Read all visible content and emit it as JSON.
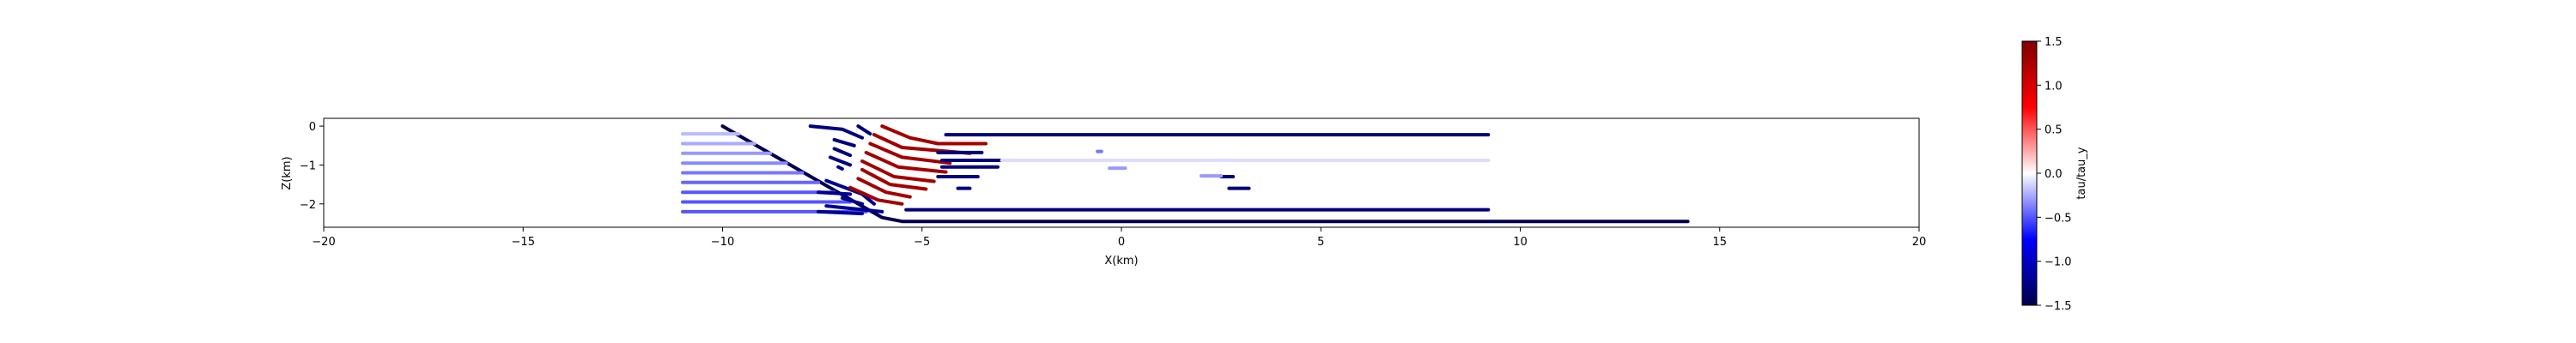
{
  "chart_data": {
    "type": "scatter",
    "xlabel": "X(km)",
    "ylabel": "Z(km)",
    "xlim": [
      -20,
      20
    ],
    "ylim": [
      -2.6,
      0.2
    ],
    "xticks": [
      "−20",
      "−15",
      "−10",
      "−5",
      "0",
      "5",
      "10",
      "15",
      "20"
    ],
    "xtick_values": [
      -20,
      -15,
      -10,
      -5,
      0,
      5,
      10,
      15,
      20
    ],
    "yticks": [
      "0",
      "−1",
      "−2"
    ],
    "ytick_values": [
      0,
      -1,
      -2
    ],
    "grid": false,
    "colorbar": {
      "label": "tau/tau_y",
      "range": [
        -1.5,
        1.5
      ],
      "ticks": [
        "1.5",
        "1.0",
        "0.5",
        "0.0",
        "−0.5",
        "−1.0",
        "−1.5"
      ],
      "tick_values": [
        1.5,
        1.0,
        0.5,
        0.0,
        -0.5,
        -1.0,
        -1.5
      ],
      "colormap": "seismic",
      "colors": [
        "#00004c",
        "#0000ff",
        "#ffffff",
        "#ff0000",
        "#800000"
      ]
    },
    "series": [
      {
        "kind": "curve",
        "value": -1.5,
        "points": [
          [
            -10.0,
            0.0
          ],
          [
            -6.0,
            -2.35
          ],
          [
            -5.5,
            -2.45
          ],
          [
            -4.0,
            -2.45
          ],
          [
            14.2,
            -2.45
          ]
        ]
      },
      {
        "kind": "curve",
        "value": -0.2,
        "points": [
          [
            -11.0,
            -0.2
          ],
          [
            -9.6,
            -0.2
          ]
        ]
      },
      {
        "kind": "curve",
        "value": -0.25,
        "points": [
          [
            -11.0,
            -0.45
          ],
          [
            -9.2,
            -0.45
          ]
        ]
      },
      {
        "kind": "curve",
        "value": -0.3,
        "points": [
          [
            -11.0,
            -0.7
          ],
          [
            -8.8,
            -0.7
          ]
        ]
      },
      {
        "kind": "curve",
        "value": -0.35,
        "points": [
          [
            -11.0,
            -0.95
          ],
          [
            -8.4,
            -0.95
          ]
        ]
      },
      {
        "kind": "curve",
        "value": -0.4,
        "points": [
          [
            -11.0,
            -1.2
          ],
          [
            -8.0,
            -1.2
          ]
        ]
      },
      {
        "kind": "curve",
        "value": -0.45,
        "points": [
          [
            -11.0,
            -1.45
          ],
          [
            -7.6,
            -1.45
          ]
        ]
      },
      {
        "kind": "curve",
        "value": -0.5,
        "points": [
          [
            -11.0,
            -1.7
          ],
          [
            -7.2,
            -1.7
          ]
        ]
      },
      {
        "kind": "curve",
        "value": -0.5,
        "points": [
          [
            -11.0,
            -1.95
          ],
          [
            -6.8,
            -1.95
          ]
        ]
      },
      {
        "kind": "curve",
        "value": -0.5,
        "points": [
          [
            -11.0,
            -2.2
          ],
          [
            -6.4,
            -2.2
          ]
        ]
      },
      {
        "kind": "curve",
        "value": -1.2,
        "points": [
          [
            -7.4,
            -1.4
          ],
          [
            -6.5,
            -1.75
          ],
          [
            -6.2,
            -2.0
          ]
        ]
      },
      {
        "kind": "curve",
        "value": -1.2,
        "points": [
          [
            -7.6,
            -1.7
          ],
          [
            -6.8,
            -1.75
          ]
        ]
      },
      {
        "kind": "curve",
        "value": -1.2,
        "points": [
          [
            -7.0,
            -1.85
          ],
          [
            -6.5,
            -2.0
          ]
        ]
      },
      {
        "kind": "curve",
        "value": -1.2,
        "points": [
          [
            -7.4,
            -2.05
          ],
          [
            -6.0,
            -2.2
          ]
        ]
      },
      {
        "kind": "curve",
        "value": -1.2,
        "points": [
          [
            -7.6,
            -2.2
          ],
          [
            -6.5,
            -2.25
          ]
        ]
      },
      {
        "kind": "curve",
        "value": -1.3,
        "points": [
          [
            -7.8,
            0.0
          ],
          [
            -7.0,
            -0.08
          ],
          [
            -6.5,
            -0.3
          ]
        ]
      },
      {
        "kind": "curve",
        "value": -1.3,
        "points": [
          [
            -6.6,
            0.0
          ],
          [
            -6.3,
            -0.2
          ]
        ]
      },
      {
        "kind": "curve",
        "value": -1.3,
        "points": [
          [
            -7.2,
            -0.35
          ],
          [
            -6.7,
            -0.5
          ]
        ]
      },
      {
        "kind": "curve",
        "value": -1.3,
        "points": [
          [
            -7.2,
            -0.58
          ],
          [
            -6.8,
            -0.75
          ]
        ]
      },
      {
        "kind": "curve",
        "value": -1.3,
        "points": [
          [
            -7.3,
            -0.8
          ],
          [
            -6.8,
            -1.0
          ]
        ]
      },
      {
        "kind": "curve",
        "value": -1.2,
        "points": [
          [
            -7.1,
            -1.05
          ],
          [
            -7.0,
            -1.1
          ]
        ]
      },
      {
        "kind": "curve",
        "value": 1.3,
        "points": [
          [
            -6.0,
            0.0
          ],
          [
            -5.3,
            -0.3
          ],
          [
            -4.6,
            -0.45
          ],
          [
            -3.4,
            -0.45
          ]
        ]
      },
      {
        "kind": "curve",
        "value": 1.3,
        "points": [
          [
            -6.2,
            -0.22
          ],
          [
            -5.5,
            -0.55
          ],
          [
            -3.8,
            -0.7
          ]
        ]
      },
      {
        "kind": "curve",
        "value": 1.3,
        "points": [
          [
            -6.3,
            -0.45
          ],
          [
            -5.5,
            -0.8
          ],
          [
            -4.3,
            -0.95
          ]
        ]
      },
      {
        "kind": "curve",
        "value": 1.3,
        "points": [
          [
            -6.4,
            -0.68
          ],
          [
            -5.6,
            -1.05
          ],
          [
            -4.4,
            -1.18
          ]
        ]
      },
      {
        "kind": "curve",
        "value": 1.3,
        "points": [
          [
            -6.5,
            -0.9
          ],
          [
            -5.7,
            -1.3
          ],
          [
            -4.7,
            -1.42
          ]
        ]
      },
      {
        "kind": "curve",
        "value": 1.3,
        "points": [
          [
            -6.5,
            -1.12
          ],
          [
            -5.8,
            -1.5
          ],
          [
            -4.9,
            -1.62
          ]
        ]
      },
      {
        "kind": "curve",
        "value": 1.3,
        "points": [
          [
            -6.6,
            -1.35
          ],
          [
            -5.9,
            -1.7
          ],
          [
            -5.3,
            -1.82
          ]
        ]
      },
      {
        "kind": "curve",
        "value": 1.3,
        "points": [
          [
            -6.8,
            -1.58
          ],
          [
            -6.1,
            -1.9
          ],
          [
            -5.5,
            -2.0
          ]
        ]
      },
      {
        "kind": "curve",
        "value": -1.3,
        "points": [
          [
            -4.4,
            -0.22
          ],
          [
            9.2,
            -0.22
          ]
        ]
      },
      {
        "kind": "curve",
        "value": -1.3,
        "points": [
          [
            -4.6,
            -0.68
          ],
          [
            -3.5,
            -0.68
          ]
        ]
      },
      {
        "kind": "curve",
        "value": -1.3,
        "points": [
          [
            -4.5,
            -0.88
          ],
          [
            -2.9,
            -0.88
          ]
        ]
      },
      {
        "kind": "curve",
        "value": -1.3,
        "points": [
          [
            -4.5,
            -1.05
          ],
          [
            -3.1,
            -1.05
          ]
        ]
      },
      {
        "kind": "curve",
        "value": -1.3,
        "points": [
          [
            -4.6,
            -1.3
          ],
          [
            -3.6,
            -1.3
          ]
        ]
      },
      {
        "kind": "curve",
        "value": -1.3,
        "points": [
          [
            -4.1,
            -1.6
          ],
          [
            -3.8,
            -1.6
          ]
        ]
      },
      {
        "kind": "curve",
        "value": -1.3,
        "points": [
          [
            -5.4,
            -2.15
          ],
          [
            9.2,
            -2.15
          ]
        ]
      },
      {
        "kind": "curve",
        "value": -1.3,
        "points": [
          [
            2.5,
            -1.3
          ],
          [
            2.8,
            -1.3
          ]
        ]
      },
      {
        "kind": "curve",
        "value": -1.3,
        "points": [
          [
            2.7,
            -1.6
          ],
          [
            3.2,
            -1.6
          ]
        ]
      },
      {
        "kind": "curve",
        "value": -0.4,
        "points": [
          [
            -0.6,
            -0.65
          ],
          [
            -0.5,
            -0.65
          ]
        ]
      },
      {
        "kind": "curve",
        "value": -0.3,
        "points": [
          [
            -0.3,
            -1.08
          ],
          [
            0.1,
            -1.08
          ]
        ]
      },
      {
        "kind": "curve",
        "value": -0.3,
        "points": [
          [
            2.0,
            -1.28
          ],
          [
            2.5,
            -1.28
          ]
        ]
      },
      {
        "kind": "curve",
        "value": -0.1,
        "points": [
          [
            -3.0,
            -0.88
          ],
          [
            9.2,
            -0.88
          ]
        ]
      }
    ]
  }
}
